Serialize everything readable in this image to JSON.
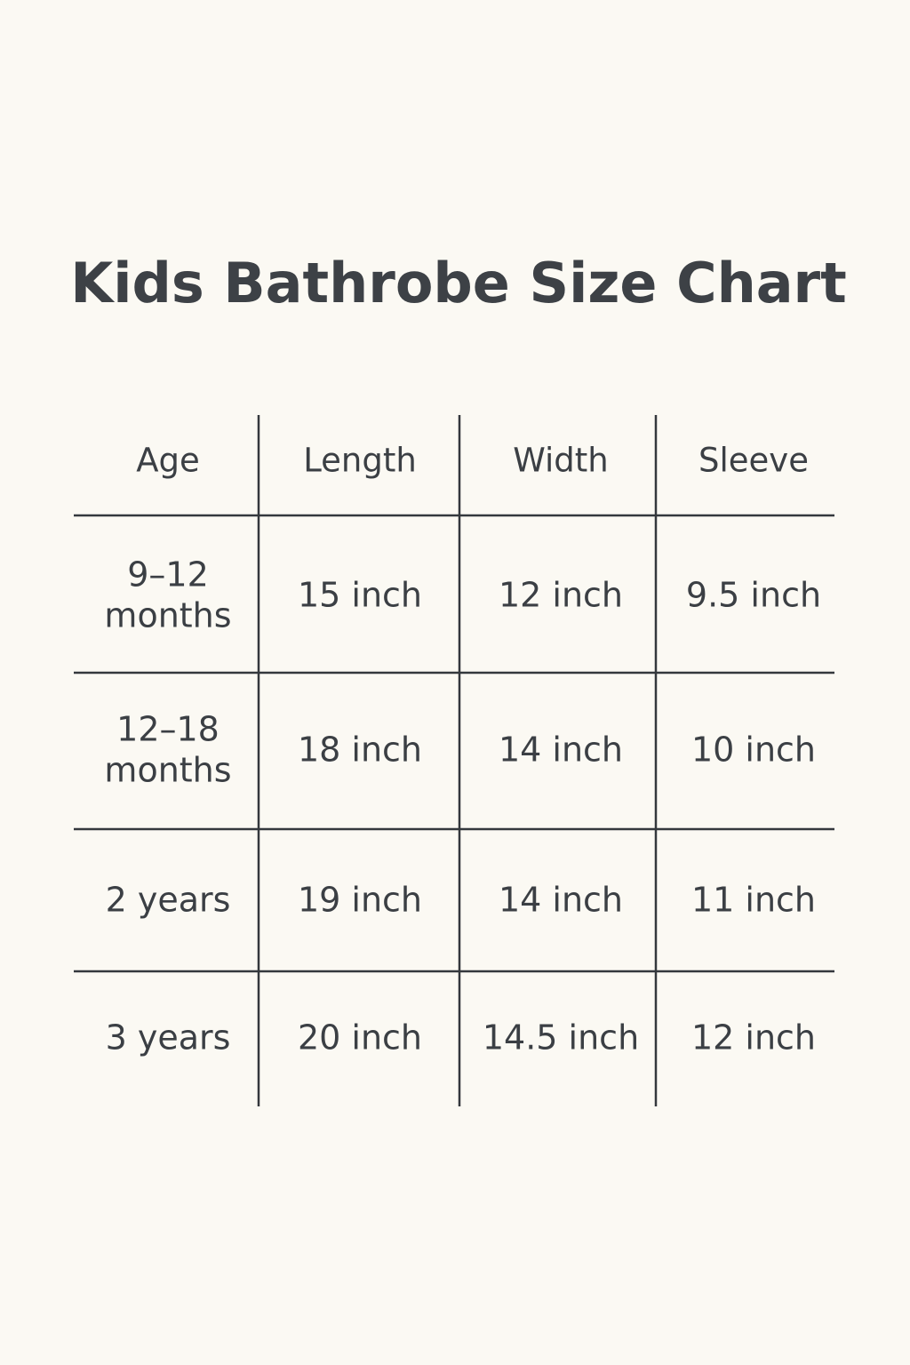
{
  "chart_data": {
    "type": "table",
    "title": "Kids Bathrobe Size Chart",
    "columns": [
      "Age",
      "Length",
      "Width",
      "Sleeve"
    ],
    "rows": [
      [
        [
          "9–12",
          "months"
        ],
        "15 inch",
        "12 inch",
        "9.5 inch"
      ],
      [
        [
          "12–18",
          "months"
        ],
        "18 inch",
        "14 inch",
        "10 inch"
      ],
      [
        [
          "2 years"
        ],
        "19 inch",
        "14 inch",
        "11 inch"
      ],
      [
        [
          "3 years"
        ],
        "20 inch",
        "14.5 inch",
        "12 inch"
      ]
    ],
    "colors": {
      "background": "#fbf9f3",
      "text": "#3b3f44",
      "grid": "#34383d"
    }
  }
}
